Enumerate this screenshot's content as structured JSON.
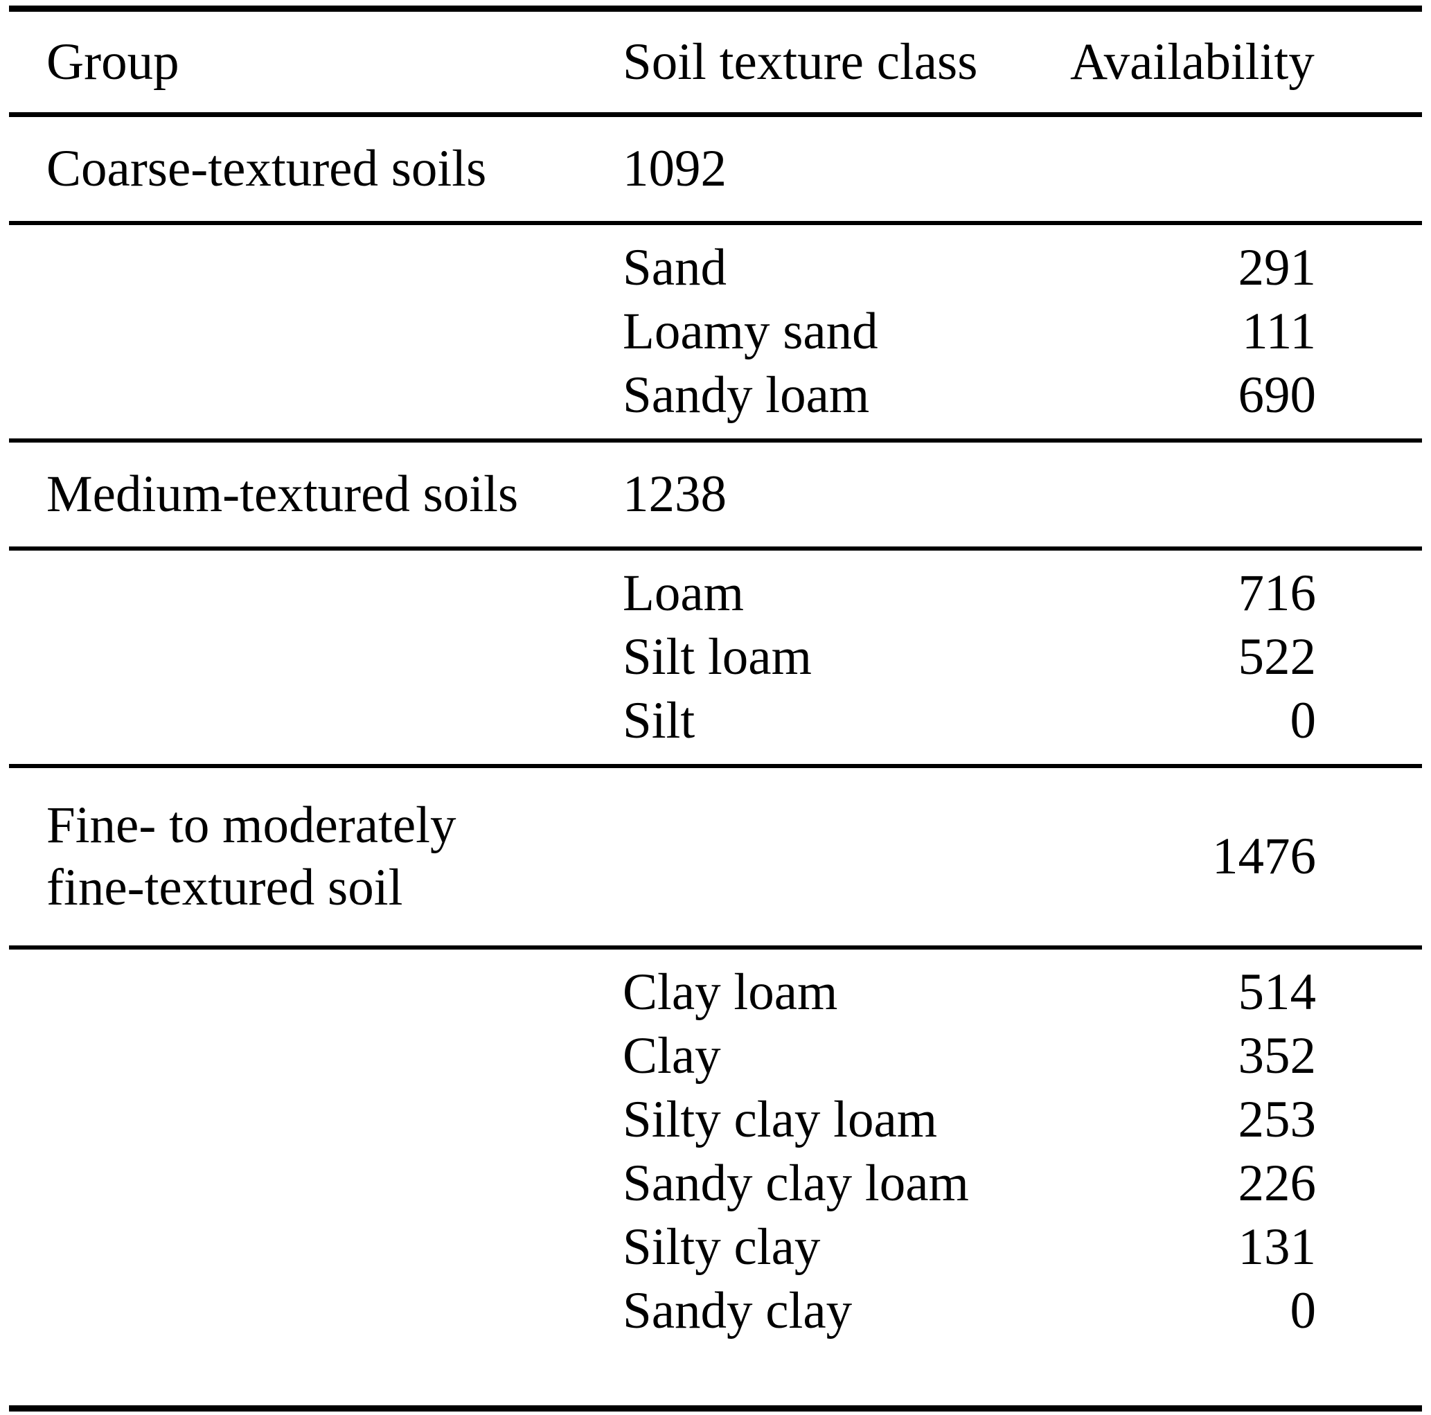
{
  "table": {
    "columns": [
      {
        "label": "Group"
      },
      {
        "label": "Soil texture class"
      },
      {
        "label": "Availability"
      }
    ],
    "groups": [
      {
        "name": "Coarse-textured soils",
        "total": "1092",
        "total_column": "soil-texture-class",
        "rows": [
          {
            "texture": "Sand",
            "availability": "291"
          },
          {
            "texture": "Loamy sand",
            "availability": "111"
          },
          {
            "texture": "Sandy loam",
            "availability": "690"
          }
        ]
      },
      {
        "name": "Medium-textured soils",
        "total": "1238",
        "total_column": "soil-texture-class",
        "rows": [
          {
            "texture": "Loam",
            "availability": "716"
          },
          {
            "texture": "Silt loam",
            "availability": "522"
          },
          {
            "texture": "Silt",
            "availability": "0"
          }
        ]
      },
      {
        "name": "Fine- to moderately fine-textured soil",
        "name_line1": "Fine- to moderately",
        "name_line2": "fine-textured soil",
        "total": "1476",
        "total_column": "availability",
        "rows": [
          {
            "texture": "Clay loam",
            "availability": "514"
          },
          {
            "texture": "Clay",
            "availability": "352"
          },
          {
            "texture": "Silty clay loam",
            "availability": "253"
          },
          {
            "texture": "Sandy clay loam",
            "availability": "226"
          },
          {
            "texture": "Silty clay",
            "availability": "131"
          },
          {
            "texture": "Sandy clay",
            "availability": "0"
          }
        ]
      }
    ]
  }
}
